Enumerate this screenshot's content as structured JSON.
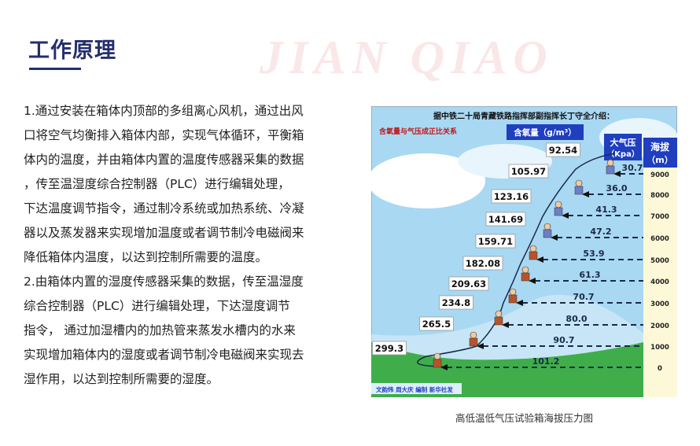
{
  "header": {
    "title": "工作原理"
  },
  "body": {
    "lines": [
      "1.通过安装在箱体内顶部的多组离心风机，通过出风",
      "口将空气均衡排入箱体内部，实现气体循环，平衡箱",
      "体内的温度，并由箱体内置的温度传感器采集的数据",
      "，传至温湿度综合控制器（PLC）进行编辑处理，",
      "下达温度调节指令，通过制冷系统或加热系统、冷凝",
      "器以及蒸发器来实现增加温度或者调节制冷电磁阀来",
      "降低箱体内温度，以达到控制所需要的温度。",
      "2.由箱体内置的湿度传感器采集的数据，传至温湿度",
      "综合控制器（PLC）进行编辑处理，下达湿度调节",
      "指令， 通过加湿槽内的加热管来蒸发水槽内的水来",
      "实现增加箱体内的湿度或者调节制冷电磁阀来实现去",
      "湿作用，以达到控制所需要的湿度。"
    ]
  },
  "figure": {
    "heading": "据中铁二十局青藏铁路指挥部副指挥长丁守全介绍：",
    "subheading": "含氧量与气压成正比关系",
    "oxygen_label": "含氧量（g/m³）",
    "pressure_label_1": "大气压",
    "pressure_label_2": "（Kpa）",
    "altitude_label_1": "海拔",
    "altitude_label_2": "（m）",
    "credit": "文韵炜 周大庆 编制 新华社发",
    "altitudes": [
      "9000",
      "8000",
      "7000",
      "6000",
      "5000",
      "4000",
      "3000",
      "2000",
      "1000",
      "0"
    ],
    "pressures": [
      "30.7",
      "36.0",
      "41.3",
      "47.2",
      "53.9",
      "61.3",
      "70.7",
      "80.0",
      "90.7",
      "101.2"
    ],
    "oxygen": [
      "92.54",
      "105.97",
      "123.16",
      "141.69",
      "159.71",
      "182.08",
      "209.63",
      "234.8",
      "265.5",
      "299.3"
    ],
    "colors": {
      "sky": "#a9d8f2",
      "hill": "#3fae4a",
      "label_bg": "#1f3fbf",
      "subheading": "#c0181a",
      "altitude_column": "#fdf8d8"
    }
  },
  "caption": "高低温低气压试验箱海拔压力图",
  "watermark": "JIAN QIAO"
}
